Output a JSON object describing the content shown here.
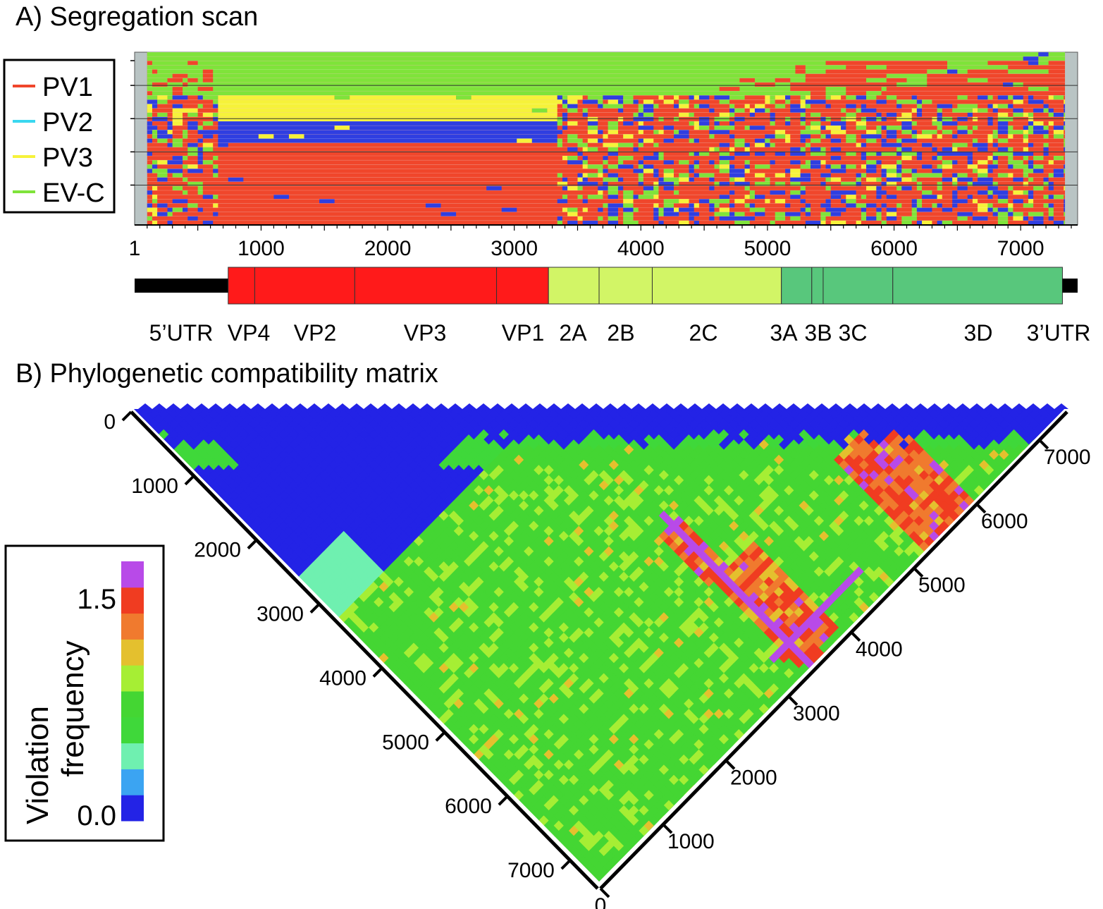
{
  "colors": {
    "PV1": "#f0462b",
    "PV2": "#2f3ee0",
    "PV3": "#f6f23a",
    "EV-C": "#7fe33a",
    "legend_PV2_swatch": "#3ad8f0",
    "panel_bg": "#b9c4c4",
    "capsid": "#ff1a1a",
    "p2": "#d2f566",
    "p3": "#58c77c",
    "utr": "#000000"
  },
  "chart_data": [
    {
      "type": "heatmap",
      "panel": "A",
      "title": "A) Segregation scan",
      "xlabel": "",
      "ylabel": "",
      "xlim": [
        1,
        7450
      ],
      "data_range": [
        100,
        7350
      ],
      "xticks": [
        "1",
        "1000",
        "2000",
        "3000",
        "4000",
        "5000",
        "6000",
        "7000"
      ],
      "xtick_values": [
        1,
        1000,
        2000,
        3000,
        4000,
        5000,
        6000,
        7000
      ],
      "legend": {
        "position": "left",
        "entries": [
          {
            "label": "PV1",
            "color": "#f0462b"
          },
          {
            "label": "PV2",
            "color": "#3ad8f0"
          },
          {
            "label": "PV3",
            "color": "#f6f23a"
          },
          {
            "label": "EV-C",
            "color": "#7fe33a"
          }
        ]
      },
      "rows": 40,
      "segments": [
        {
          "rows": [
            0,
            10
          ],
          "from": 100,
          "to": 7350,
          "source": "EV-C"
        },
        {
          "rows": [
            10,
            16
          ],
          "from": 630,
          "to": 3320,
          "source": "PV3"
        },
        {
          "rows": [
            16,
            21
          ],
          "from": 630,
          "to": 3320,
          "source": "PV2"
        },
        {
          "rows": [
            21,
            40
          ],
          "from": 630,
          "to": 3320,
          "source": "PV1"
        },
        {
          "rows": [
            10,
            40
          ],
          "from": 3320,
          "to": 7350,
          "source": "mixed"
        }
      ],
      "genome_map": {
        "regions": [
          {
            "label": "5’UTR",
            "start": 1,
            "end": 740,
            "type": "utr"
          },
          {
            "label": "VP4",
            "start": 740,
            "end": 950,
            "type": "capsid"
          },
          {
            "label": "VP2",
            "start": 950,
            "end": 1740,
            "type": "capsid"
          },
          {
            "label": "VP3",
            "start": 1740,
            "end": 2860,
            "type": "capsid"
          },
          {
            "label": "VP1",
            "start": 2860,
            "end": 3270,
            "type": "capsid"
          },
          {
            "label": "2A",
            "start": 3270,
            "end": 3670,
            "type": "p2"
          },
          {
            "label": "2B",
            "start": 3670,
            "end": 4090,
            "type": "p2"
          },
          {
            "label": "2C",
            "start": 4090,
            "end": 5110,
            "type": "p2"
          },
          {
            "label": "3A",
            "start": 5110,
            "end": 5350,
            "type": "p3"
          },
          {
            "label": "3B",
            "start": 5350,
            "end": 5440,
            "type": "p3"
          },
          {
            "label": "3C",
            "start": 5440,
            "end": 5990,
            "type": "p3"
          },
          {
            "label": "3D",
            "start": 5990,
            "end": 7330,
            "type": "p3"
          },
          {
            "label": "3’UTR",
            "start": 7330,
            "end": 7450,
            "type": "utr"
          }
        ]
      }
    },
    {
      "type": "heatmap",
      "panel": "B",
      "title": "B) Phylogenetic compatibility matrix",
      "xlabel": "",
      "ylabel": "",
      "axis_range": [
        0,
        7440
      ],
      "left_axis_ticks": [
        "0",
        "1000",
        "2000",
        "3000",
        "4000",
        "5000",
        "6000",
        "7000"
      ],
      "right_axis_ticks": [
        "0",
        "1000",
        "2000",
        "3000",
        "4000",
        "5000",
        "6000",
        "7000"
      ],
      "tick_values": [
        0,
        1000,
        2000,
        3000,
        4000,
        5000,
        6000,
        7000
      ],
      "colorbar": {
        "label_line1": "Violation",
        "label_line2": "frequency",
        "position": "left",
        "min_label": "0.0",
        "max_label": "1.5",
        "min": 0.0,
        "max": 1.5,
        "levels": [
          "#2323e6",
          "#3ba4f2",
          "#6ff0b0",
          "#3fd83a",
          "#44d633",
          "#a6ee34",
          "#e4c02e",
          "#f07a2e",
          "#f03c21",
          "#b84ae8"
        ]
      },
      "features": {
        "blue_blocks": [
          [
            0,
            3300
          ]
        ],
        "hot_bands": [
          [
            5160,
            6000
          ],
          [
            6000,
            7350
          ],
          [
            3300,
            3700
          ]
        ],
        "grid_step": 80
      }
    }
  ]
}
